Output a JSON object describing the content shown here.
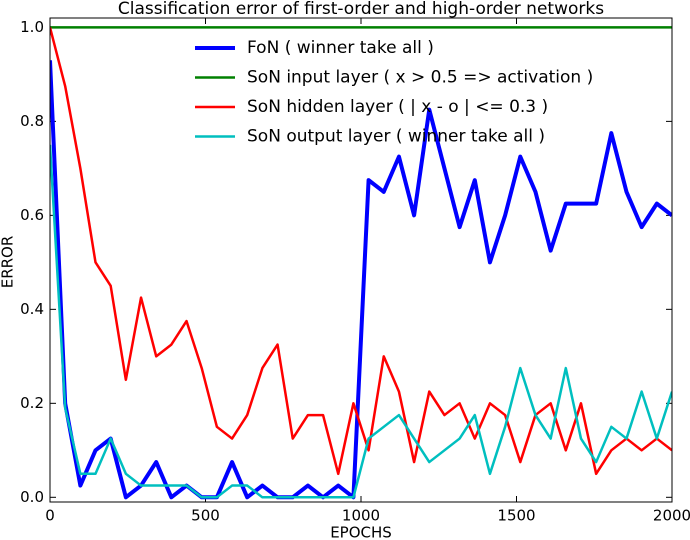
{
  "chart_data": {
    "type": "line",
    "title": "Classification error of first-order and high-order networks",
    "x_label": "EPOCHS",
    "y_label": "ERROR",
    "x": [
      0,
      48.8,
      97.6,
      146.3,
      195.1,
      243.9,
      292.7,
      341.5,
      390.2,
      439.0,
      487.8,
      536.6,
      585.4,
      634.1,
      682.9,
      731.7,
      780.5,
      829.3,
      878.0,
      926.8,
      975.6,
      1024.4,
      1073.2,
      1122.0,
      1170.7,
      1219.5,
      1268.3,
      1317.1,
      1365.9,
      1414.6,
      1463.4,
      1512.2,
      1561.0,
      1609.8,
      1658.5,
      1707.3,
      1756.1,
      1804.9,
      1853.7,
      1902.4,
      1951.2,
      2000
    ],
    "series": [
      {
        "name": "FoN ( winner take all )",
        "color": "#0000ff",
        "values": [
          0.93,
          0.2,
          0.025,
          0.1,
          0.125,
          0,
          0.025,
          0.075,
          0,
          0.025,
          0,
          0,
          0.075,
          0,
          0.025,
          0,
          0,
          0.025,
          0,
          0.025,
          0,
          0.675,
          0.65,
          0.725,
          0.6,
          0.825,
          0.7,
          0.575,
          0.675,
          0.5,
          0.6,
          0.725,
          0.65,
          0.525,
          0.625,
          0.625,
          0.625,
          0.775,
          0.65,
          0.575,
          0.625,
          0.6
        ]
      },
      {
        "name": "SoN input layer ( x > 0.5 => activation )",
        "color": "#008000",
        "values": [
          1,
          1,
          1,
          1,
          1,
          1,
          1,
          1,
          1,
          1,
          1,
          1,
          1,
          1,
          1,
          1,
          1,
          1,
          1,
          1,
          1,
          1,
          1,
          1,
          1,
          1,
          1,
          1,
          1,
          1,
          1,
          1,
          1,
          1,
          1,
          1,
          1,
          1,
          1,
          1,
          1,
          1
        ]
      },
      {
        "name": "SoN hidden layer ( | x - o | <= 0.3 )",
        "color": "#ff0000",
        "values": [
          1.0,
          0.875,
          0.7,
          0.5,
          0.45,
          0.25,
          0.425,
          0.3,
          0.325,
          0.375,
          0.275,
          0.15,
          0.125,
          0.175,
          0.275,
          0.325,
          0.125,
          0.175,
          0.175,
          0.05,
          0.2,
          0.1,
          0.3,
          0.225,
          0.075,
          0.225,
          0.175,
          0.2,
          0.125,
          0.2,
          0.175,
          0.075,
          0.175,
          0.2,
          0.1,
          0.2,
          0.05,
          0.1,
          0.125,
          0.1,
          0.125,
          0.1
        ]
      },
      {
        "name": "SoN output layer ( winner take all )",
        "color": "#00bfbf",
        "values": [
          0.75,
          0.19,
          0.05,
          0.05,
          0.125,
          0.05,
          0.025,
          0.025,
          0.025,
          0.025,
          0,
          0,
          0.025,
          0.025,
          0,
          0,
          0,
          0,
          0,
          0,
          0,
          0.125,
          0.15,
          0.175,
          0.125,
          0.075,
          0.1,
          0.125,
          0.175,
          0.05,
          0.15,
          0.275,
          0.175,
          0.125,
          0.275,
          0.125,
          0.075,
          0.15,
          0.125,
          0.225,
          0.125,
          0.225
        ]
      }
    ],
    "xlim": [
      0,
      2000
    ],
    "ylim": [
      -0.01,
      1.02
    ],
    "xticks": [
      0,
      500,
      1000,
      1500,
      2000
    ],
    "yticks": [
      {
        "value": 0,
        "label": "0.0"
      },
      {
        "value": 0.2,
        "label": "0.2"
      },
      {
        "value": 0.4,
        "label": "0.4"
      },
      {
        "value": 0.6,
        "label": "0.6"
      },
      {
        "value": 0.8,
        "label": "0.8"
      },
      {
        "value": 1.0,
        "label": "1.0"
      }
    ],
    "legend": "upper center"
  }
}
